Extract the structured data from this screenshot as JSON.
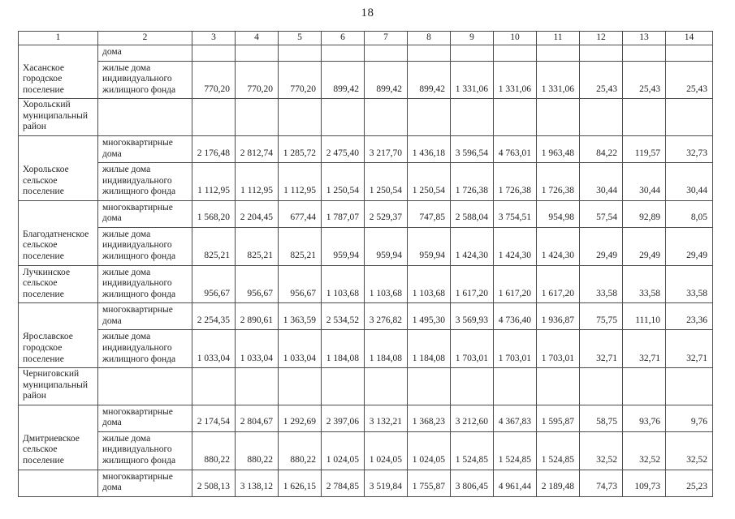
{
  "page_number": "18",
  "table": {
    "column_headers": [
      "1",
      "2",
      "3",
      "4",
      "5",
      "6",
      "7",
      "8",
      "9",
      "10",
      "11",
      "12",
      "13",
      "14"
    ],
    "rows": [
      {
        "name": "Хасанское городское поселение",
        "name_rowspan": 2,
        "district": false,
        "category": "дома",
        "values": [
          "",
          "",
          "",
          "",
          "",
          "",
          "",
          "",
          "",
          "",
          "",
          ""
        ]
      },
      {
        "category": "жилые дома индивидуального жилищного фонда",
        "values": [
          "770,20",
          "770,20",
          "770,20",
          "899,42",
          "899,42",
          "899,42",
          "1 331,06",
          "1 331,06",
          "1 331,06",
          "25,43",
          "25,43",
          "25,43"
        ]
      },
      {
        "name": "Хорольский муниципальный район",
        "name_rowspan": 1,
        "district": true,
        "category": "",
        "values": [
          "",
          "",
          "",
          "",
          "",
          "",
          "",
          "",
          "",
          "",
          "",
          ""
        ]
      },
      {
        "name": "Хорольское сельское поселение",
        "name_rowspan": 2,
        "district": false,
        "category": "многоквартирные дома",
        "values": [
          "2 176,48",
          "2 812,74",
          "1 285,72",
          "2 475,40",
          "3 217,70",
          "1 436,18",
          "3 596,54",
          "4 763,01",
          "1 963,48",
          "84,22",
          "119,57",
          "32,73"
        ]
      },
      {
        "category": "жилые дома индивидуального жилищного фонда",
        "values": [
          "1 112,95",
          "1 112,95",
          "1 112,95",
          "1 250,54",
          "1 250,54",
          "1 250,54",
          "1 726,38",
          "1 726,38",
          "1 726,38",
          "30,44",
          "30,44",
          "30,44"
        ]
      },
      {
        "name": "Благодатненское сельское поселение",
        "name_rowspan": 2,
        "district": false,
        "category": "многоквартирные дома",
        "values": [
          "1 568,20",
          "2 204,45",
          "677,44",
          "1 787,07",
          "2 529,37",
          "747,85",
          "2 588,04",
          "3 754,51",
          "954,98",
          "57,54",
          "92,89",
          "8,05"
        ]
      },
      {
        "category": "жилые дома индивидуального жилищного фонда",
        "values": [
          "825,21",
          "825,21",
          "825,21",
          "959,94",
          "959,94",
          "959,94",
          "1 424,30",
          "1 424,30",
          "1 424,30",
          "29,49",
          "29,49",
          "29,49"
        ]
      },
      {
        "name": "Лучкинское сельское поселение",
        "name_rowspan": 1,
        "district": false,
        "category": "жилые дома индивидуального жилищного фонда",
        "values": [
          "956,67",
          "956,67",
          "956,67",
          "1 103,68",
          "1 103,68",
          "1 103,68",
          "1 617,20",
          "1 617,20",
          "1 617,20",
          "33,58",
          "33,58",
          "33,58"
        ]
      },
      {
        "name": "Ярославское городское поселение",
        "name_rowspan": 2,
        "district": false,
        "category": "многоквартирные дома",
        "values": [
          "2 254,35",
          "2 890,61",
          "1 363,59",
          "2 534,52",
          "3 276,82",
          "1 495,30",
          "3 569,93",
          "4 736,40",
          "1 936,87",
          "75,75",
          "111,10",
          "23,36"
        ]
      },
      {
        "category": "жилые дома индивидуального жилищного фонда",
        "values": [
          "1 033,04",
          "1 033,04",
          "1 033,04",
          "1 184,08",
          "1 184,08",
          "1 184,08",
          "1 703,01",
          "1 703,01",
          "1 703,01",
          "32,71",
          "32,71",
          "32,71"
        ]
      },
      {
        "name": "Черниговский муниципальный район",
        "name_rowspan": 1,
        "district": true,
        "category": "",
        "values": [
          "",
          "",
          "",
          "",
          "",
          "",
          "",
          "",
          "",
          "",
          "",
          ""
        ]
      },
      {
        "name": "Дмитриевское сельское поселение",
        "name_rowspan": 2,
        "district": false,
        "category": "многоквартирные дома",
        "values": [
          "2 174,54",
          "2 804,67",
          "1 292,69",
          "2 397,06",
          "3 132,21",
          "1 368,23",
          "3 212,60",
          "4 367,83",
          "1 595,87",
          "58,75",
          "93,76",
          "9,76"
        ]
      },
      {
        "category": "жилые дома индивидуального жилищного фонда",
        "values": [
          "880,22",
          "880,22",
          "880,22",
          "1 024,05",
          "1 024,05",
          "1 024,05",
          "1 524,85",
          "1 524,85",
          "1 524,85",
          "32,52",
          "32,52",
          "32,52"
        ]
      },
      {
        "name": "",
        "name_rowspan": 1,
        "district": false,
        "category": "многоквартирные дома",
        "values": [
          "2 508,13",
          "3 138,12",
          "1 626,15",
          "2 784,85",
          "3 519,84",
          "1 755,87",
          "3 806,45",
          "4 961,44",
          "2 189,48",
          "74,73",
          "109,73",
          "25,23"
        ]
      }
    ]
  }
}
